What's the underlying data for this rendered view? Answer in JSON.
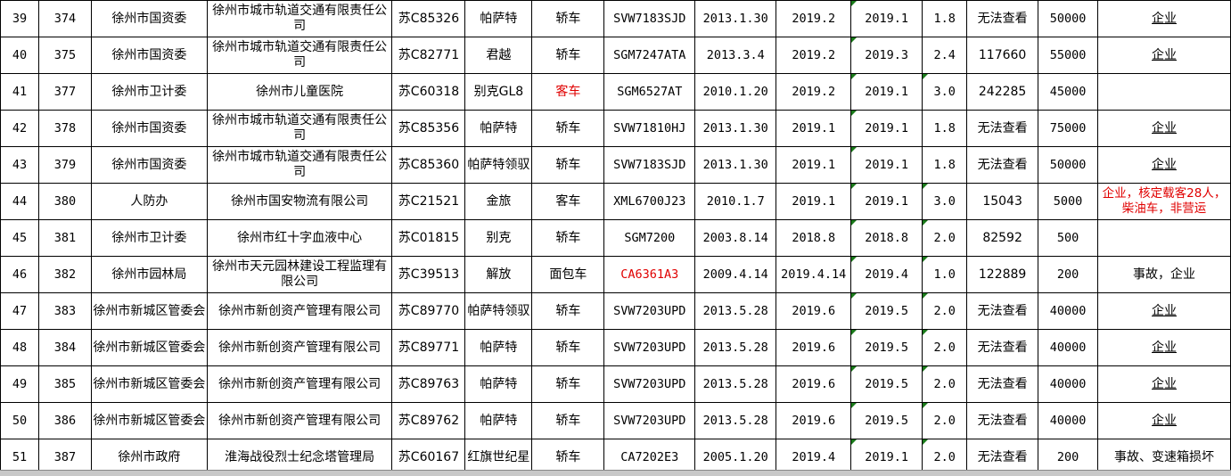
{
  "rows": [
    {
      "seq": "39",
      "no": "374",
      "dept": "徐州市国资委",
      "unit": "徐州市城市轨道交通有限责任公司",
      "plate": "苏C85326",
      "brand": "帕萨特",
      "type": "轿车",
      "model": "SVW7183SJD",
      "reg": "2013.1.30",
      "d1": "2019.2",
      "d2": "2019.1",
      "disp": "1.8",
      "km": "无法查看",
      "price": "50000",
      "remark": "企业"
    },
    {
      "seq": "40",
      "no": "375",
      "dept": "徐州市国资委",
      "unit": "徐州市城市轨道交通有限责任公司",
      "plate": "苏C82771",
      "brand": "君越",
      "type": "轿车",
      "model": "SGM7247ATA",
      "reg": "2013.3.4",
      "d1": "2019.2",
      "d2": "2019.3",
      "disp": "2.4",
      "km": "117660",
      "price": "55000",
      "remark": "企业"
    },
    {
      "seq": "41",
      "no": "377",
      "dept": "徐州市卫计委",
      "unit": "徐州市儿童医院",
      "plate": "苏C60318",
      "brand": "别克GL8",
      "type": "客车",
      "model": "SGM6527AT",
      "reg": "2010.1.20",
      "d1": "2019.2",
      "d2": "2019.1",
      "disp": "3.0",
      "km": "242285",
      "price": "45000",
      "remark": ""
    },
    {
      "seq": "42",
      "no": "378",
      "dept": "徐州市国资委",
      "unit": "徐州市城市轨道交通有限责任公司",
      "plate": "苏C85356",
      "brand": "帕萨特",
      "type": "轿车",
      "model": "SVW71810HJ",
      "reg": "2013.1.30",
      "d1": "2019.1",
      "d2": "2019.1",
      "disp": "1.8",
      "km": "无法查看",
      "price": "75000",
      "remark": "企业"
    },
    {
      "seq": "43",
      "no": "379",
      "dept": "徐州市国资委",
      "unit": "徐州市城市轨道交通有限责任公司",
      "plate": "苏C85360",
      "brand": "帕萨特领驭",
      "type": "轿车",
      "model": "SVW7183SJD",
      "reg": "2013.1.30",
      "d1": "2019.1",
      "d2": "2019.1",
      "disp": "1.8",
      "km": "无法查看",
      "price": "50000",
      "remark": "企业"
    },
    {
      "seq": "44",
      "no": "380",
      "dept": "人防办",
      "unit": "徐州市国安物流有限公司",
      "plate": "苏C21521",
      "brand": "金旅",
      "type": "客车",
      "model": "XML6700J23",
      "reg": "2010.1.7",
      "d1": "2019.1",
      "d2": "2019.1",
      "disp": "3.0",
      "km": "15043",
      "price": "5000",
      "remark": "企业，核定载客28人，柴油车，非营运"
    },
    {
      "seq": "45",
      "no": "381",
      "dept": "徐州市卫计委",
      "unit": "徐州市红十字血液中心",
      "plate": "苏C01815",
      "brand": "别克",
      "type": "轿车",
      "model": "SGM7200",
      "reg": "2003.8.14",
      "d1": "2018.8",
      "d2": "2018.8",
      "disp": "2.0",
      "km": "82592",
      "price": "500",
      "remark": ""
    },
    {
      "seq": "46",
      "no": "382",
      "dept": "徐州市园林局",
      "unit": "徐州市天元园林建设工程监理有限公司",
      "plate": "苏C39513",
      "brand": "解放",
      "type": "面包车",
      "model": "CA6361A3",
      "reg": "2009.4.14",
      "d1": "2019.4.14",
      "d2": "2019.4",
      "disp": "1.0",
      "km": "122889",
      "price": "200",
      "remark": "事故，企业"
    },
    {
      "seq": "47",
      "no": "383",
      "dept": "徐州市新城区管委会",
      "unit": "徐州市新创资产管理有限公司",
      "plate": "苏C89770",
      "brand": "帕萨特领驭",
      "type": "轿车",
      "model": "SVW7203UPD",
      "reg": "2013.5.28",
      "d1": "2019.6",
      "d2": "2019.5",
      "disp": "2.0",
      "km": "无法查看",
      "price": "40000",
      "remark": "企业"
    },
    {
      "seq": "48",
      "no": "384",
      "dept": "徐州市新城区管委会",
      "unit": "徐州市新创资产管理有限公司",
      "plate": "苏C89771",
      "brand": "帕萨特",
      "type": "轿车",
      "model": "SVW7203UPD",
      "reg": "2013.5.28",
      "d1": "2019.6",
      "d2": "2019.5",
      "disp": "2.0",
      "km": "无法查看",
      "price": "40000",
      "remark": "企业"
    },
    {
      "seq": "49",
      "no": "385",
      "dept": "徐州市新城区管委会",
      "unit": "徐州市新创资产管理有限公司",
      "plate": "苏C89763",
      "brand": "帕萨特",
      "type": "轿车",
      "model": "SVW7203UPD",
      "reg": "2013.5.28",
      "d1": "2019.6",
      "d2": "2019.5",
      "disp": "2.0",
      "km": "无法查看",
      "price": "40000",
      "remark": "企业"
    },
    {
      "seq": "50",
      "no": "386",
      "dept": "徐州市新城区管委会",
      "unit": "徐州市新创资产管理有限公司",
      "plate": "苏C89762",
      "brand": "帕萨特",
      "type": "轿车",
      "model": "SVW7203UPD",
      "reg": "2013.5.28",
      "d1": "2019.6",
      "d2": "2019.5",
      "disp": "2.0",
      "km": "无法查看",
      "price": "40000",
      "remark": "企业"
    },
    {
      "seq": "51",
      "no": "387",
      "dept": "徐州市政府",
      "unit": "淮海战役烈士纪念塔管理局",
      "plate": "苏C60167",
      "brand": "红旗世纪星",
      "type": "轿车",
      "model": "CA7202E3",
      "reg": "2005.1.20",
      "d1": "2019.4",
      "d2": "2019.1",
      "disp": "2.0",
      "km": "无法查看",
      "price": "200",
      "remark": "事故、变速箱损坏"
    }
  ],
  "colors": {
    "red_text": "#e00000",
    "indicator": "#1a7a1a"
  }
}
